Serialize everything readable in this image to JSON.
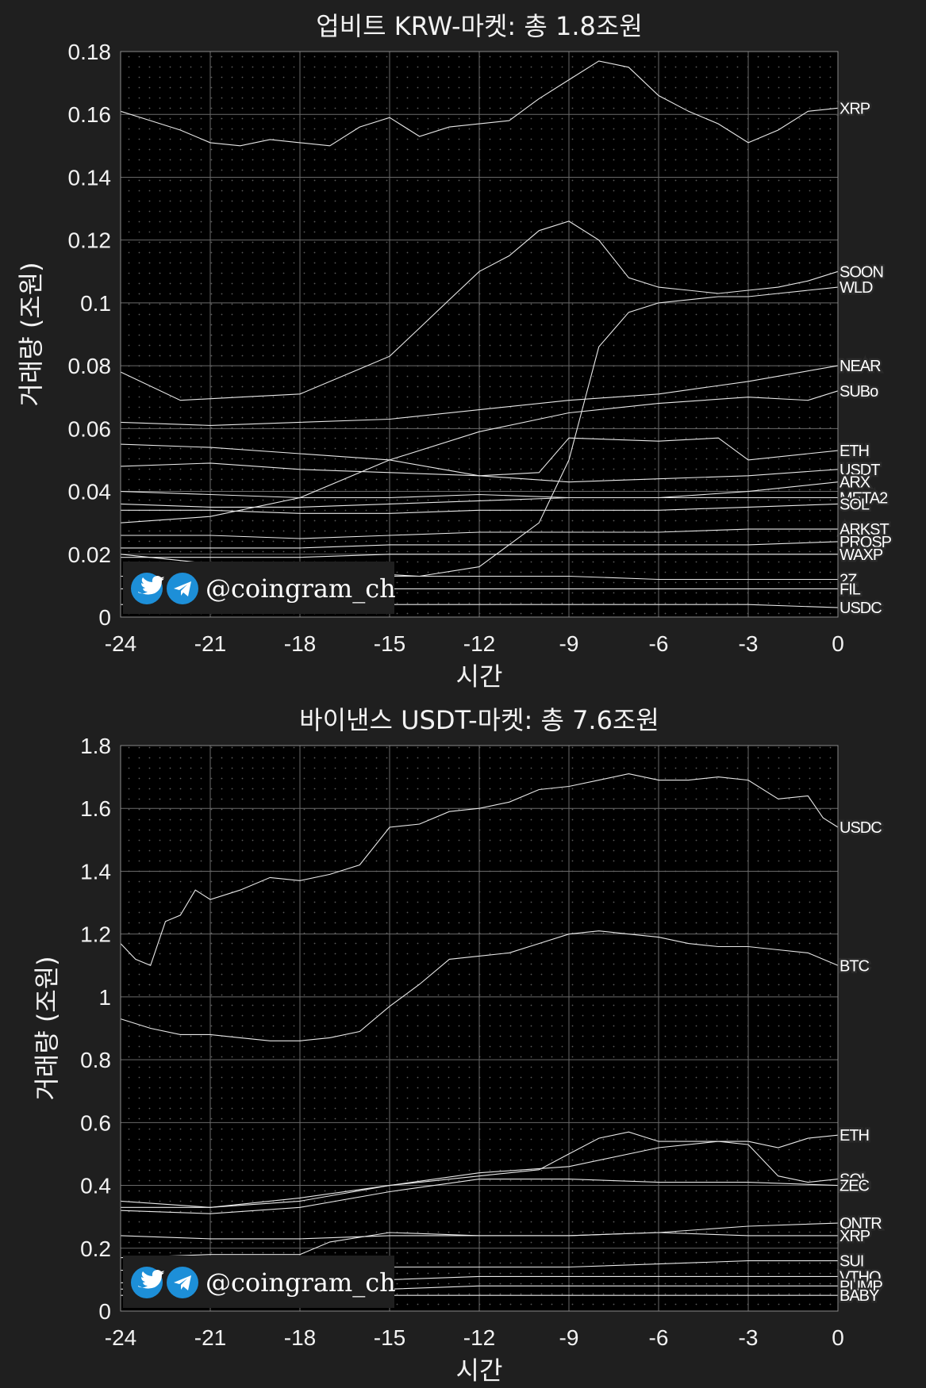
{
  "watermark": "@coingram_ch",
  "chart_data": [
    {
      "type": "line",
      "title": "업비트 KRW-마켓: 총 1.8조원",
      "xlabel": "시간",
      "ylabel": "거래량 (조원)",
      "xlim": [
        -24,
        0
      ],
      "ylim": [
        0,
        0.18
      ],
      "xticks": [
        -24,
        -21,
        -18,
        -15,
        -12,
        -9,
        -6,
        -3,
        0
      ],
      "yticks": [
        0,
        0.02,
        0.04,
        0.06,
        0.08,
        0.1,
        0.12,
        0.14,
        0.16,
        0.18
      ],
      "ytick_labels": [
        "0",
        "0.02",
        "0.04",
        "0.06",
        "0.08",
        "0.1",
        "0.12",
        "0.14",
        "0.16",
        "0.18"
      ],
      "grid": true,
      "series": [
        {
          "name": "XRP",
          "x": [
            -24,
            -23,
            -22,
            -21,
            -20,
            -19,
            -18,
            -17,
            -16,
            -15,
            -14,
            -13,
            -12,
            -11,
            -10,
            -9,
            -8,
            -7,
            -6,
            -5,
            -4,
            -3,
            -2,
            -1,
            0
          ],
          "values": [
            0.161,
            0.158,
            0.155,
            0.151,
            0.15,
            0.152,
            0.151,
            0.15,
            0.156,
            0.159,
            0.153,
            0.156,
            0.157,
            0.158,
            0.165,
            0.171,
            0.177,
            0.175,
            0.166,
            0.161,
            0.157,
            0.151,
            0.155,
            0.161,
            0.162
          ]
        },
        {
          "name": "SOON",
          "x": [
            -24,
            -22,
            -20,
            -18,
            -16,
            -15,
            -14,
            -13,
            -12,
            -11,
            -10,
            -9,
            -8,
            -7,
            -6,
            -5,
            -4,
            -3,
            -2,
            -1,
            0
          ],
          "values": [
            0.078,
            0.069,
            0.07,
            0.071,
            0.079,
            0.083,
            0.092,
            0.101,
            0.11,
            0.115,
            0.123,
            0.126,
            0.12,
            0.108,
            0.105,
            0.104,
            0.103,
            0.104,
            0.105,
            0.107,
            0.11
          ]
        },
        {
          "name": "WLD",
          "x": [
            -24,
            -22,
            -20,
            -18,
            -16,
            -14,
            -12,
            -10,
            -9,
            -8.5,
            -8,
            -7,
            -6,
            -5,
            -4,
            -3,
            -2,
            -1,
            0
          ],
          "values": [
            0.02,
            0.018,
            0.016,
            0.015,
            0.014,
            0.013,
            0.016,
            0.03,
            0.05,
            0.068,
            0.086,
            0.097,
            0.1,
            0.101,
            0.102,
            0.102,
            0.103,
            0.104,
            0.105
          ]
        },
        {
          "name": "NEAR",
          "x": [
            -24,
            -21,
            -18,
            -15,
            -12,
            -9,
            -6,
            -3,
            0
          ],
          "values": [
            0.062,
            0.061,
            0.062,
            0.063,
            0.066,
            0.069,
            0.071,
            0.075,
            0.08
          ]
        },
        {
          "name": "SUBo",
          "x": [
            -24,
            -21,
            -18,
            -15,
            -12,
            -9,
            -6,
            -3,
            -1,
            0
          ],
          "values": [
            0.03,
            0.032,
            0.038,
            0.05,
            0.059,
            0.065,
            0.068,
            0.07,
            0.069,
            0.072
          ]
        },
        {
          "name": "ETH",
          "x": [
            -24,
            -21,
            -18,
            -15,
            -12,
            -10,
            -9,
            -6,
            -4,
            -3,
            -1,
            0
          ],
          "values": [
            0.055,
            0.054,
            0.052,
            0.05,
            0.045,
            0.046,
            0.057,
            0.056,
            0.057,
            0.05,
            0.052,
            0.053
          ]
        },
        {
          "name": "USDT",
          "x": [
            -24,
            -21,
            -18,
            -15,
            -12,
            -9,
            -6,
            -3,
            0
          ],
          "values": [
            0.048,
            0.049,
            0.047,
            0.046,
            0.045,
            0.043,
            0.044,
            0.045,
            0.047
          ]
        },
        {
          "name": "ARX",
          "x": [
            -24,
            -21,
            -18,
            -15,
            -12,
            -9,
            -6,
            -3,
            0
          ],
          "values": [
            0.04,
            0.039,
            0.038,
            0.038,
            0.039,
            0.038,
            0.038,
            0.04,
            0.043
          ]
        },
        {
          "name": "META2",
          "x": [
            -24,
            -21,
            -18,
            -15,
            -12,
            -9,
            -6,
            -3,
            0
          ],
          "values": [
            0.036,
            0.035,
            0.035,
            0.036,
            0.037,
            0.038,
            0.038,
            0.038,
            0.038
          ]
        },
        {
          "name": "SOL",
          "x": [
            -24,
            -21,
            -18,
            -15,
            -12,
            -9,
            -6,
            -3,
            0
          ],
          "values": [
            0.034,
            0.034,
            0.033,
            0.033,
            0.034,
            0.034,
            0.034,
            0.035,
            0.036
          ]
        },
        {
          "name": "ARKST",
          "x": [
            -24,
            -21,
            -18,
            -15,
            -12,
            -9,
            -6,
            -3,
            0
          ],
          "values": [
            0.026,
            0.026,
            0.025,
            0.026,
            0.027,
            0.027,
            0.027,
            0.028,
            0.028
          ]
        },
        {
          "name": "PROSP",
          "x": [
            -24,
            -21,
            -18,
            -15,
            -12,
            -9,
            -6,
            -3,
            0
          ],
          "values": [
            0.022,
            0.022,
            0.022,
            0.023,
            0.023,
            0.023,
            0.023,
            0.023,
            0.024
          ]
        },
        {
          "name": "WAXP",
          "x": [
            -24,
            -21,
            -18,
            -15,
            -12,
            -9,
            -6,
            -3,
            0
          ],
          "values": [
            0.019,
            0.019,
            0.019,
            0.02,
            0.02,
            0.02,
            0.02,
            0.02,
            0.02
          ]
        },
        {
          "name": "2Z",
          "x": [
            -24,
            -21,
            -18,
            -15,
            -12,
            -9,
            -6,
            -3,
            0
          ],
          "values": [
            0.013,
            0.013,
            0.013,
            0.013,
            0.013,
            0.013,
            0.012,
            0.012,
            0.012
          ]
        },
        {
          "name": "FIL",
          "x": [
            -24,
            -21,
            -18,
            -15,
            -12,
            -9,
            -6,
            -3,
            0
          ],
          "values": [
            0.009,
            0.009,
            0.009,
            0.009,
            0.009,
            0.009,
            0.009,
            0.009,
            0.009
          ]
        },
        {
          "name": "USDC",
          "x": [
            -24,
            -21,
            -18,
            -15,
            -12,
            -9,
            -6,
            -3,
            0
          ],
          "values": [
            0.004,
            0.004,
            0.004,
            0.004,
            0.004,
            0.004,
            0.004,
            0.004,
            0.003
          ]
        }
      ]
    },
    {
      "type": "line",
      "title": "바이낸스 USDT-마켓: 총 7.6조원",
      "xlabel": "시간",
      "ylabel": "거래량 (조원)",
      "xlim": [
        -24,
        0
      ],
      "ylim": [
        0,
        1.8
      ],
      "xticks": [
        -24,
        -21,
        -18,
        -15,
        -12,
        -9,
        -6,
        -3,
        0
      ],
      "yticks": [
        0,
        0.2,
        0.4,
        0.6,
        0.8,
        1,
        1.2,
        1.4,
        1.6,
        1.8
      ],
      "ytick_labels": [
        "0",
        "0.2",
        "0.4",
        "0.6",
        "0.8",
        "1",
        "1.2",
        "1.4",
        "1.6",
        "1.8"
      ],
      "grid": true,
      "series": [
        {
          "name": "USDC",
          "x": [
            -24,
            -23.5,
            -23,
            -22.5,
            -22,
            -21.5,
            -21,
            -20,
            -19,
            -18,
            -17,
            -16,
            -15,
            -14,
            -13,
            -12,
            -11,
            -10,
            -9,
            -8,
            -7,
            -6,
            -5,
            -4,
            -3,
            -2,
            -1,
            -0.5,
            0
          ],
          "values": [
            1.17,
            1.12,
            1.1,
            1.24,
            1.26,
            1.34,
            1.31,
            1.34,
            1.38,
            1.37,
            1.39,
            1.42,
            1.54,
            1.55,
            1.59,
            1.6,
            1.62,
            1.66,
            1.67,
            1.69,
            1.71,
            1.69,
            1.69,
            1.7,
            1.69,
            1.63,
            1.64,
            1.57,
            1.54
          ]
        },
        {
          "name": "BTC",
          "x": [
            -24,
            -23,
            -22,
            -21,
            -20,
            -19,
            -18,
            -17,
            -16,
            -15,
            -14,
            -13,
            -12,
            -11,
            -10,
            -9,
            -8,
            -7,
            -6,
            -5,
            -4,
            -3,
            -2,
            -1,
            0
          ],
          "values": [
            0.93,
            0.9,
            0.88,
            0.88,
            0.87,
            0.86,
            0.86,
            0.87,
            0.89,
            0.97,
            1.04,
            1.12,
            1.13,
            1.14,
            1.17,
            1.2,
            1.21,
            1.2,
            1.19,
            1.17,
            1.16,
            1.16,
            1.15,
            1.14,
            1.1
          ]
        },
        {
          "name": "ETH",
          "x": [
            -24,
            -21,
            -18,
            -15,
            -12,
            -10,
            -9,
            -8,
            -7,
            -6,
            -5,
            -4,
            -3,
            -2,
            -1,
            0
          ],
          "values": [
            0.33,
            0.33,
            0.35,
            0.4,
            0.43,
            0.45,
            0.5,
            0.55,
            0.57,
            0.54,
            0.54,
            0.54,
            0.54,
            0.52,
            0.55,
            0.56
          ]
        },
        {
          "name": "SOL",
          "x": [
            -24,
            -21,
            -18,
            -15,
            -12,
            -9,
            -6,
            -4,
            -3,
            -2,
            -1,
            0
          ],
          "values": [
            0.35,
            0.33,
            0.36,
            0.4,
            0.44,
            0.46,
            0.52,
            0.54,
            0.53,
            0.43,
            0.41,
            0.42
          ]
        },
        {
          "name": "ZEC",
          "x": [
            -24,
            -21,
            -18,
            -15,
            -12,
            -9,
            -6,
            -3,
            0
          ],
          "values": [
            0.32,
            0.31,
            0.33,
            0.38,
            0.42,
            0.42,
            0.41,
            0.41,
            0.4
          ]
        },
        {
          "name": "QNTR",
          "x": [
            -24,
            -21,
            -18,
            -15,
            -12,
            -9,
            -6,
            -3,
            0
          ],
          "values": [
            0.24,
            0.23,
            0.23,
            0.24,
            0.24,
            0.24,
            0.25,
            0.27,
            0.28
          ]
        },
        {
          "name": "XRP",
          "x": [
            -24,
            -21,
            -18,
            -17,
            -15,
            -12,
            -9,
            -6,
            -3,
            0
          ],
          "values": [
            0.17,
            0.18,
            0.18,
            0.22,
            0.25,
            0.24,
            0.24,
            0.25,
            0.24,
            0.24
          ]
        },
        {
          "name": "SUI",
          "x": [
            -24,
            -21,
            -18,
            -15,
            -12,
            -9,
            -6,
            -3,
            0
          ],
          "values": [
            0.13,
            0.13,
            0.13,
            0.14,
            0.14,
            0.14,
            0.15,
            0.16,
            0.16
          ]
        },
        {
          "name": "VTHO",
          "x": [
            -24,
            -21,
            -18,
            -15,
            -12,
            -9,
            -6,
            -3,
            0
          ],
          "values": [
            0.09,
            0.09,
            0.09,
            0.1,
            0.11,
            0.11,
            0.11,
            0.11,
            0.11
          ]
        },
        {
          "name": "PUMP",
          "x": [
            -24,
            -21,
            -18,
            -15,
            -12,
            -9,
            -6,
            -3,
            0
          ],
          "values": [
            0.07,
            0.07,
            0.07,
            0.07,
            0.08,
            0.08,
            0.08,
            0.08,
            0.08
          ]
        },
        {
          "name": "BABY",
          "x": [
            -24,
            -21,
            -18,
            -15,
            -12,
            -9,
            -6,
            -3,
            0
          ],
          "values": [
            0.05,
            0.05,
            0.05,
            0.05,
            0.05,
            0.05,
            0.05,
            0.05,
            0.05
          ]
        }
      ]
    }
  ]
}
